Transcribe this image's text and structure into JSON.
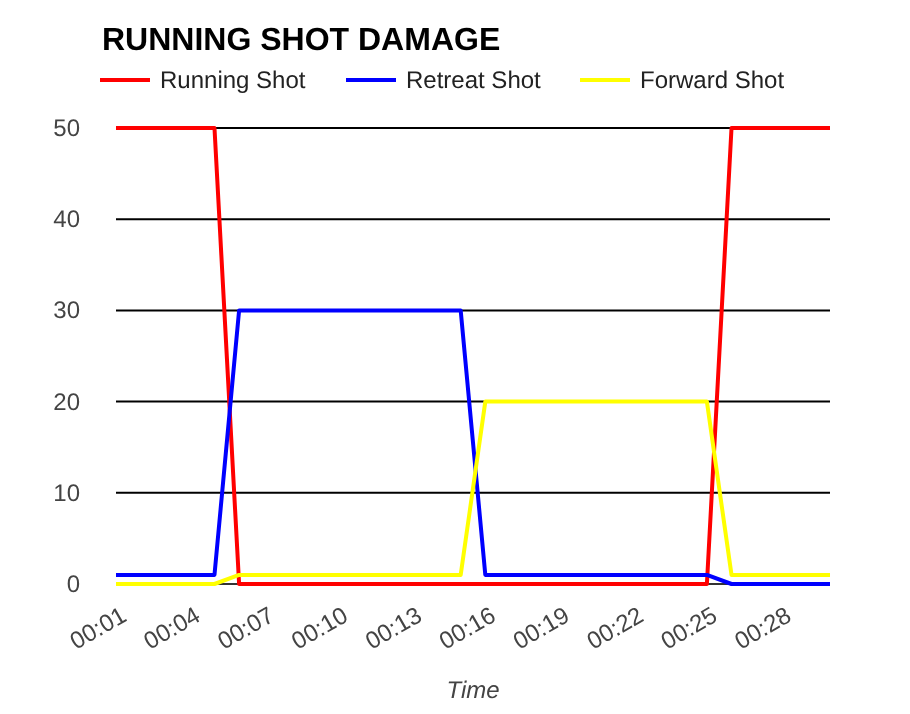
{
  "chart_data": {
    "type": "line",
    "title": "RUNNING SHOT DAMAGE",
    "xlabel": "Time",
    "categories": [
      "00:01",
      null,
      null,
      "00:04",
      null,
      null,
      "00:07",
      null,
      null,
      "00:10",
      null,
      null,
      "00:13",
      null,
      null,
      "00:16",
      null,
      null,
      "00:19",
      null,
      null,
      "00:22",
      null,
      null,
      "00:25",
      null,
      null,
      "00:28",
      null,
      null
    ],
    "series": [
      {
        "name": "Running Shot",
        "color": "#ff0000",
        "values": [
          50,
          50,
          50,
          50,
          50,
          0,
          0,
          0,
          0,
          0,
          0,
          0,
          0,
          0,
          0,
          0,
          0,
          0,
          0,
          0,
          0,
          0,
          0,
          0,
          0,
          50,
          50,
          50,
          50,
          50
        ]
      },
      {
        "name": "Retreat Shot",
        "color": "#0000ff",
        "values": [
          1,
          1,
          1,
          1,
          1,
          30,
          30,
          30,
          30,
          30,
          30,
          30,
          30,
          30,
          30,
          1,
          1,
          1,
          1,
          1,
          1,
          1,
          1,
          1,
          1,
          0,
          0,
          0,
          0,
          0
        ]
      },
      {
        "name": "Forward Shot",
        "color": "#ffff00",
        "values": [
          0,
          0,
          0,
          0,
          0,
          1,
          1,
          1,
          1,
          1,
          1,
          1,
          1,
          1,
          1,
          20,
          20,
          20,
          20,
          20,
          20,
          20,
          20,
          20,
          20,
          1,
          1,
          1,
          1,
          1
        ]
      }
    ],
    "ylim": [
      0,
      50
    ],
    "yticks": [
      0,
      10,
      20,
      30,
      40,
      50
    ],
    "grid": "y",
    "legend": "top",
    "marker": "none",
    "line_style": "solid"
  }
}
